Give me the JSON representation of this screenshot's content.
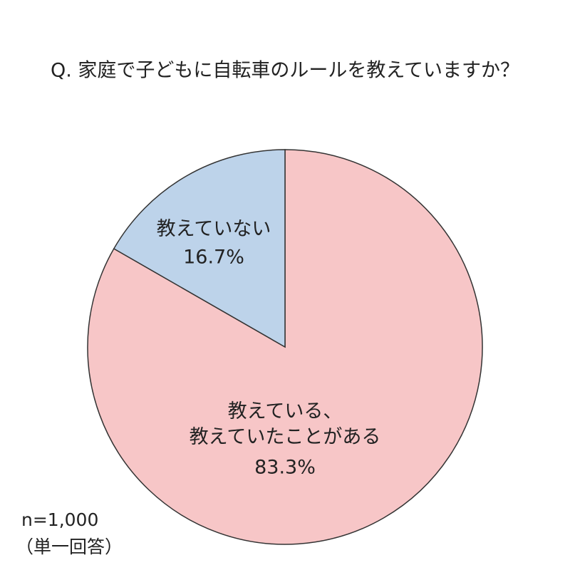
{
  "chart_data": {
    "type": "pie",
    "title": "Q. 家庭で子どもに自転車のルールを教えていますか？",
    "categories": [
      "教えている、\n教えていたことがある",
      "教えていない"
    ],
    "values": [
      83.3,
      16.7
    ],
    "value_labels": [
      "83.3%",
      "16.7%"
    ],
    "colors": [
      "#f7c6c7",
      "#bdd3ea"
    ],
    "notes": [
      "n=1,000",
      "（単一回答）"
    ]
  }
}
